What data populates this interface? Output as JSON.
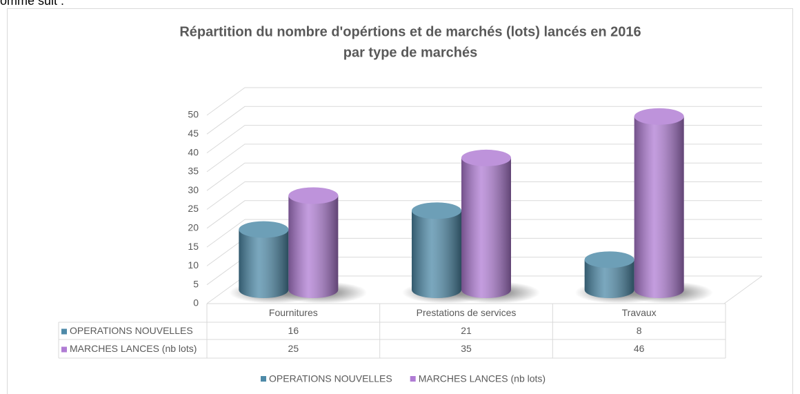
{
  "text_above": "omme suit :",
  "chart_data": {
    "type": "bar3d",
    "title": [
      "Répartition du nombre d'opértions et de marchés (lots) lancés en 2016",
      "par type de marchés"
    ],
    "categories": [
      "Fournitures",
      "Prestations de services",
      "Travaux"
    ],
    "series": [
      {
        "name": "OPERATIONS NOUVELLES",
        "color": "#4e8aa8",
        "values": [
          16,
          21,
          8
        ]
      },
      {
        "name": "MARCHES LANCES (nb lots)",
        "color": "#b07cd4",
        "values": [
          25,
          35,
          46
        ]
      }
    ],
    "ylim": [
      0,
      50
    ],
    "yticks": [
      0,
      5,
      10,
      15,
      20,
      25,
      30,
      35,
      40,
      45,
      50
    ],
    "grid": true,
    "legend": "bottom",
    "data_table": true
  }
}
